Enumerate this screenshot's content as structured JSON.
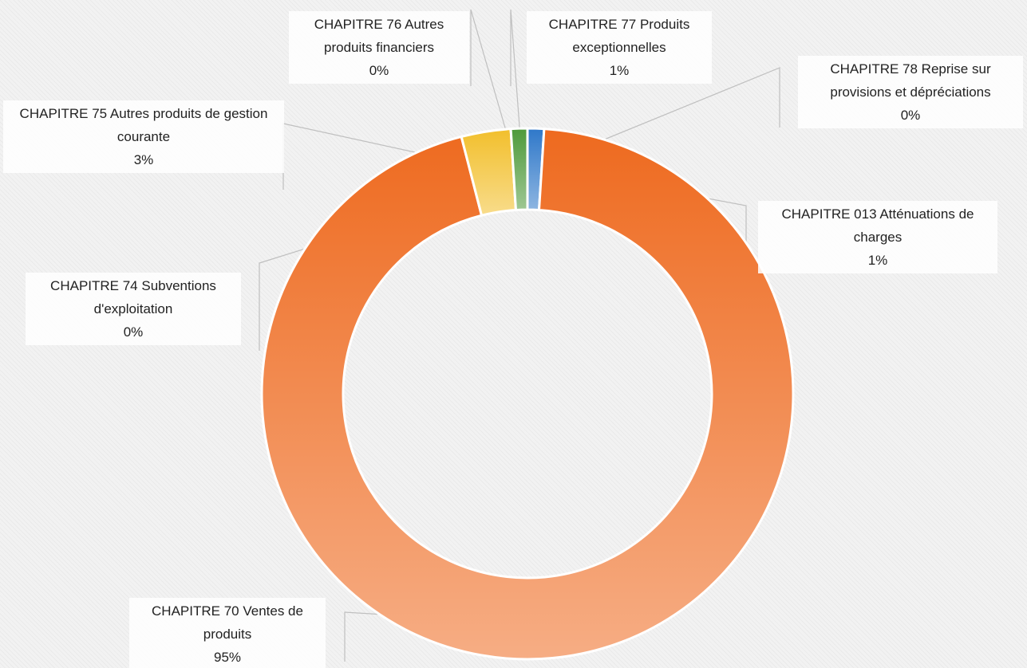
{
  "chart_data": {
    "type": "donut",
    "categories": [
      "CHAPITRE 013 Atténuations de charges",
      "CHAPITRE 70 Ventes de produits",
      "CHAPITRE 74 Subventions d'exploitation",
      "CHAPITRE 75 Autres produits de gestion courante",
      "CHAPITRE 76 Autres produits financiers",
      "CHAPITRE 77 Produits exceptionnelles",
      "CHAPITRE 78 Reprise sur provisions et dépréciations"
    ],
    "values": [
      1,
      95,
      0,
      3,
      0,
      1,
      0
    ],
    "value_labels": [
      "1%",
      "95%",
      "0%",
      "3%",
      "0%",
      "1%",
      "0%"
    ],
    "colors": [
      "#2f78c9",
      "#ee6a1f",
      "#a5a5a5",
      "#f2bf2c",
      "#5b9bd5",
      "#4e9a3a",
      "#264478"
    ]
  }
}
